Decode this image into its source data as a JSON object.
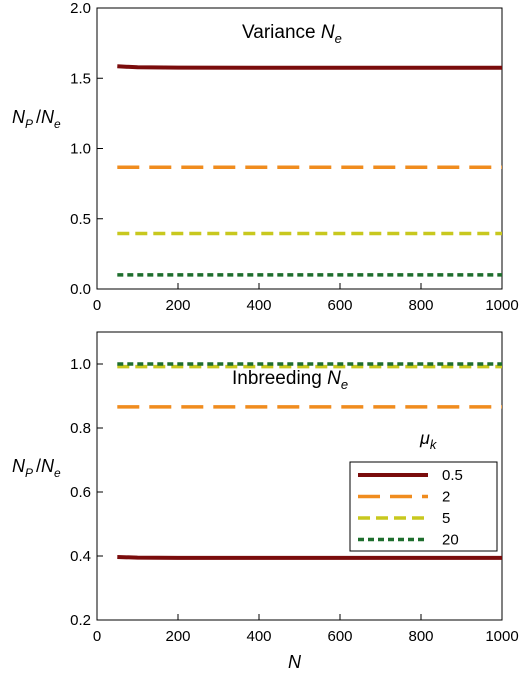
{
  "chart_data": [
    {
      "type": "line",
      "title": "Variance N_e",
      "title_main": "Variance ",
      "title_var": "N",
      "title_sub": "e",
      "ylabel": "N_P / N_e",
      "xlim": [
        0,
        1000
      ],
      "ylim": [
        0,
        2.0
      ],
      "xticks": [
        0,
        200,
        400,
        600,
        800,
        1000
      ],
      "xtick_labels": [
        "0",
        "200",
        "400",
        "600",
        "800",
        "1000"
      ],
      "yticks": [
        0,
        0.5,
        1.0,
        1.5,
        2.0
      ],
      "ytick_labels": [
        "0.0",
        "0.5",
        "1.0",
        "1.5",
        "2.0"
      ],
      "series": [
        {
          "name": "0.5",
          "x": [
            50,
            100,
            200,
            400,
            600,
            800,
            1000
          ],
          "values": [
            1.585,
            1.578,
            1.576,
            1.575,
            1.575,
            1.575,
            1.575
          ],
          "color": "#7a0c0c"
        },
        {
          "name": "2",
          "x": [
            50,
            100,
            200,
            400,
            600,
            800,
            1000
          ],
          "values": [
            0.866,
            0.866,
            0.866,
            0.866,
            0.866,
            0.866,
            0.866
          ],
          "color": "#f08c1e"
        },
        {
          "name": "5",
          "x": [
            50,
            100,
            200,
            400,
            600,
            800,
            1000
          ],
          "values": [
            0.395,
            0.395,
            0.395,
            0.395,
            0.395,
            0.395,
            0.395
          ],
          "color": "#c8c81e"
        },
        {
          "name": "20",
          "x": [
            50,
            100,
            200,
            400,
            600,
            800,
            1000
          ],
          "values": [
            0.1,
            0.1,
            0.1,
            0.1,
            0.1,
            0.1,
            0.1
          ],
          "color": "#1e6e2d"
        }
      ]
    },
    {
      "type": "line",
      "title": "Inbreeding N_e",
      "title_main": "Inbreeding ",
      "title_var": "N",
      "title_sub": "e",
      "ylabel": "N_P / N_e",
      "xlabel": "N",
      "xlim": [
        0,
        1000
      ],
      "ylim": [
        0.2,
        1.1
      ],
      "xticks": [
        0,
        200,
        400,
        600,
        800,
        1000
      ],
      "xtick_labels": [
        "0",
        "200",
        "400",
        "600",
        "800",
        "1000"
      ],
      "yticks": [
        0.2,
        0.4,
        0.6,
        0.8,
        1.0
      ],
      "ytick_labels": [
        "0.2",
        "0.4",
        "0.6",
        "0.8",
        "1.0"
      ],
      "legend": {
        "title": "μ_k",
        "placement": "bottom-right"
      },
      "series": [
        {
          "name": "0.5",
          "x": [
            50,
            100,
            200,
            400,
            600,
            800,
            1000
          ],
          "values": [
            0.397,
            0.395,
            0.394,
            0.394,
            0.394,
            0.394,
            0.394
          ],
          "color": "#7a0c0c"
        },
        {
          "name": "2",
          "x": [
            50,
            100,
            200,
            400,
            600,
            800,
            1000
          ],
          "values": [
            0.866,
            0.866,
            0.866,
            0.866,
            0.866,
            0.866,
            0.866
          ],
          "color": "#f08c1e"
        },
        {
          "name": "5",
          "x": [
            50,
            100,
            200,
            400,
            600,
            800,
            1000
          ],
          "values": [
            0.992,
            0.992,
            0.992,
            0.992,
            0.992,
            0.992,
            0.992
          ],
          "color": "#c8c81e"
        },
        {
          "name": "20",
          "x": [
            50,
            100,
            200,
            400,
            600,
            800,
            1000
          ],
          "values": [
            1.0,
            1.0,
            1.0,
            1.0,
            1.0,
            1.0,
            1.0
          ],
          "color": "#1e6e2d"
        }
      ]
    }
  ]
}
